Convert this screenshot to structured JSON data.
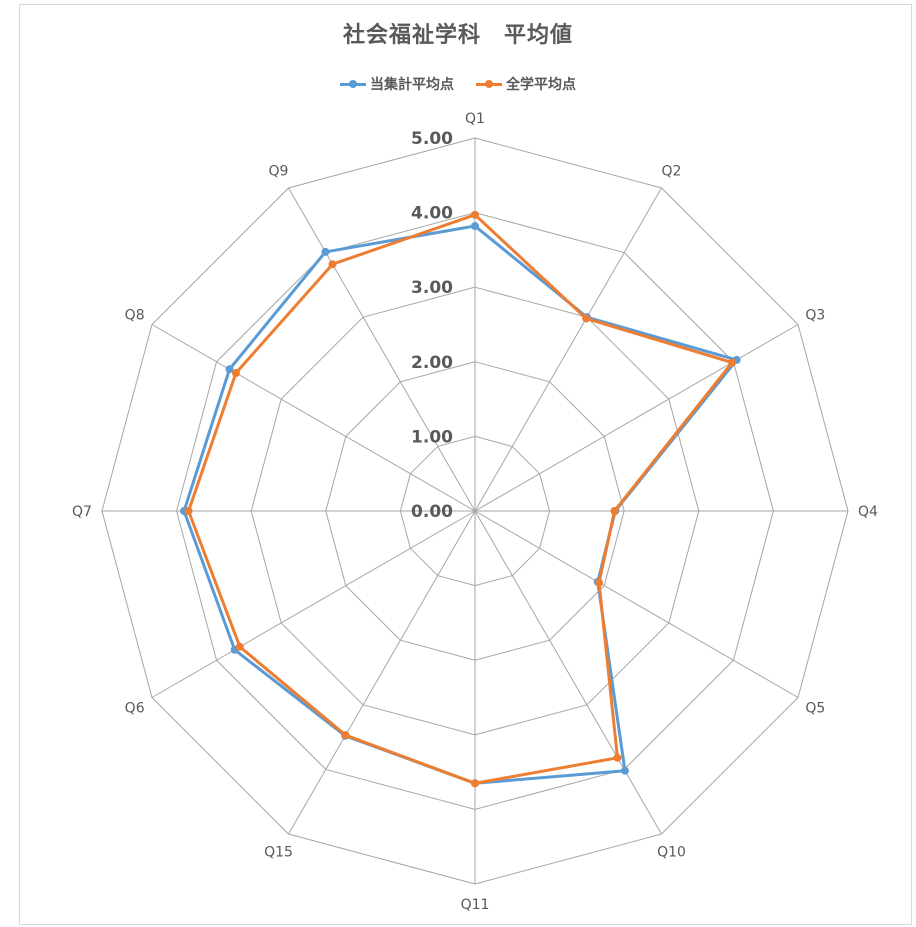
{
  "chart_data": {
    "type": "radar",
    "title": "社会福祉学科　平均値",
    "categories": [
      "Q1",
      "Q2",
      "Q3",
      "Q4",
      "Q5",
      "Q10",
      "Q11",
      "Q15",
      "Q6",
      "Q7",
      "Q8",
      "Q9"
    ],
    "rlim": [
      0,
      5
    ],
    "ticks": [
      "0.00",
      "1.00",
      "2.00",
      "3.00",
      "4.00",
      "5.00"
    ],
    "tick_values": [
      0,
      1,
      2,
      3,
      4,
      5
    ],
    "grid": true,
    "legend_position": "top",
    "series": [
      {
        "name": "当集計平均点",
        "color": "#5b9bd5",
        "values": [
          3.82,
          3.0,
          4.05,
          1.88,
          1.9,
          4.02,
          3.65,
          3.48,
          3.72,
          3.9,
          3.8,
          4.01
        ]
      },
      {
        "name": "全学平均点",
        "color": "#ed7d31",
        "values": [
          3.97,
          2.98,
          3.98,
          1.87,
          1.92,
          3.82,
          3.65,
          3.47,
          3.64,
          3.84,
          3.7,
          3.82
        ]
      }
    ]
  }
}
